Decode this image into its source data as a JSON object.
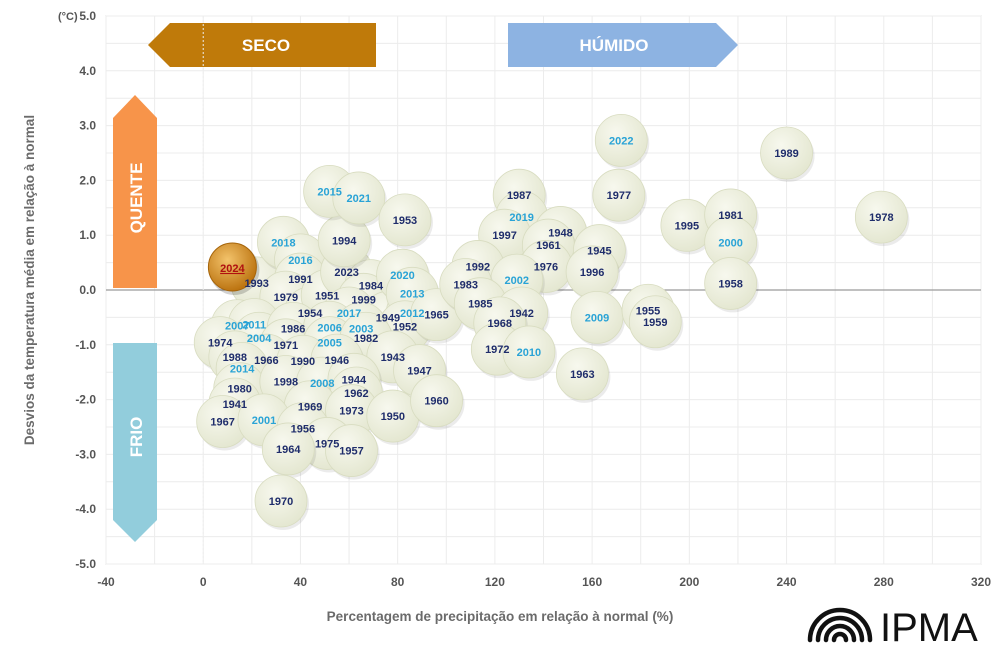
{
  "chart_data": {
    "type": "scatter",
    "title": "",
    "xlabel": "Percentagem de precipitação em relação à normal (%)",
    "ylabel": "Desvios da temperatura média em relação à normal",
    "y_unit": "(°C)",
    "xlim": [
      -40,
      320
    ],
    "ylim": [
      -5,
      5
    ],
    "x_ticks": [
      "-40",
      "0",
      "40",
      "80",
      "120",
      "160",
      "200",
      "240",
      "280",
      "320"
    ],
    "y_ticks": [
      "5.0",
      "4.0",
      "3.0",
      "2.0",
      "1.0",
      "0.0",
      "-1.0",
      "-2.0",
      "-3.0",
      "-4.0",
      "-5.0"
    ],
    "grid": true,
    "arrows": {
      "dry": "SECO",
      "wet": "HÚMIDO",
      "hot": "QUENTE",
      "cold": "FRIO"
    },
    "logo": "IPMA",
    "highlight": "2024",
    "colors": {
      "bubble": "#eef0df",
      "label_dark": "#1f2d6b",
      "label_light": "#29a3d6",
      "highlight": "#c97f12",
      "highlight_label": "#b01010",
      "dry_arrow": "#bf7a0a",
      "wet_arrow": "#8db3e2",
      "hot_arrow": "#f7944a",
      "cold_arrow": "#92cddc"
    },
    "points": [
      {
        "label": "2024",
        "x": 12,
        "y": 0.42,
        "highlight": true
      },
      {
        "label": "1993",
        "x": 22,
        "y": 0.13
      },
      {
        "label": "2018",
        "x": 33,
        "y": 0.87,
        "recent": true
      },
      {
        "label": "2016",
        "x": 40,
        "y": 0.55,
        "recent": true
      },
      {
        "label": "1991",
        "x": 40,
        "y": 0.2
      },
      {
        "label": "1979",
        "x": 34,
        "y": -0.13
      },
      {
        "label": "1954",
        "x": 44,
        "y": -0.42
      },
      {
        "label": "1951",
        "x": 51,
        "y": -0.1
      },
      {
        "label": "2023",
        "x": 59,
        "y": 0.33
      },
      {
        "label": "1984",
        "x": 69,
        "y": 0.08
      },
      {
        "label": "1999",
        "x": 66,
        "y": -0.17
      },
      {
        "label": "2017",
        "x": 60,
        "y": -0.42,
        "recent": true
      },
      {
        "label": "1949",
        "x": 76,
        "y": -0.5
      },
      {
        "label": "2012",
        "x": 86,
        "y": -0.42,
        "recent": true
      },
      {
        "label": "2020",
        "x": 82,
        "y": 0.27,
        "recent": true
      },
      {
        "label": "2013",
        "x": 86,
        "y": -0.06,
        "recent": true
      },
      {
        "label": "1952",
        "x": 83,
        "y": -0.67
      },
      {
        "label": "1965",
        "x": 96,
        "y": -0.45
      },
      {
        "label": "1994",
        "x": 58,
        "y": 0.9
      },
      {
        "label": "2015",
        "x": 52,
        "y": 1.8,
        "recent": true
      },
      {
        "label": "2021",
        "x": 64,
        "y": 1.68,
        "recent": true
      },
      {
        "label": "1953",
        "x": 83,
        "y": 1.28
      },
      {
        "label": "2007",
        "x": 14,
        "y": -0.65,
        "recent": true
      },
      {
        "label": "2011",
        "x": 21,
        "y": -0.63,
        "recent": true
      },
      {
        "label": "1974",
        "x": 7,
        "y": -0.96
      },
      {
        "label": "2004",
        "x": 23,
        "y": -0.88,
        "recent": true
      },
      {
        "label": "1986",
        "x": 37,
        "y": -0.7
      },
      {
        "label": "1971",
        "x": 34,
        "y": -1.0
      },
      {
        "label": "2006",
        "x": 52,
        "y": -0.68,
        "recent": true
      },
      {
        "label": "2003",
        "x": 65,
        "y": -0.7,
        "recent": true
      },
      {
        "label": "2005",
        "x": 52,
        "y": -0.96,
        "recent": true
      },
      {
        "label": "1982",
        "x": 67,
        "y": -0.88
      },
      {
        "label": "1988",
        "x": 13,
        "y": -1.22
      },
      {
        "label": "1966",
        "x": 26,
        "y": -1.28
      },
      {
        "label": "1990",
        "x": 41,
        "y": -1.3
      },
      {
        "label": "1946",
        "x": 55,
        "y": -1.28
      },
      {
        "label": "1943",
        "x": 78,
        "y": -1.22
      },
      {
        "label": "2014",
        "x": 16,
        "y": -1.43,
        "recent": true
      },
      {
        "label": "1980",
        "x": 15,
        "y": -1.8
      },
      {
        "label": "1998",
        "x": 34,
        "y": -1.67
      },
      {
        "label": "2008",
        "x": 49,
        "y": -1.7,
        "recent": true
      },
      {
        "label": "1944",
        "x": 62,
        "y": -1.63
      },
      {
        "label": "1947",
        "x": 89,
        "y": -1.47
      },
      {
        "label": "1962",
        "x": 63,
        "y": -1.88
      },
      {
        "label": "1941",
        "x": 13,
        "y": -2.08
      },
      {
        "label": "1969",
        "x": 44,
        "y": -2.13
      },
      {
        "label": "1973",
        "x": 61,
        "y": -2.2
      },
      {
        "label": "1950",
        "x": 78,
        "y": -2.3
      },
      {
        "label": "1960",
        "x": 96,
        "y": -2.02
      },
      {
        "label": "1967",
        "x": 8,
        "y": -2.4
      },
      {
        "label": "2001",
        "x": 25,
        "y": -2.37,
        "recent": true
      },
      {
        "label": "1956",
        "x": 41,
        "y": -2.53
      },
      {
        "label": "1975",
        "x": 51,
        "y": -2.8
      },
      {
        "label": "1964",
        "x": 35,
        "y": -2.9
      },
      {
        "label": "1957",
        "x": 61,
        "y": -2.93
      },
      {
        "label": "1970",
        "x": 32,
        "y": -3.85
      },
      {
        "label": "1987",
        "x": 130,
        "y": 1.73
      },
      {
        "label": "2019",
        "x": 131,
        "y": 1.33,
        "recent": true
      },
      {
        "label": "1997",
        "x": 124,
        "y": 1.0
      },
      {
        "label": "1948",
        "x": 147,
        "y": 1.05
      },
      {
        "label": "1961",
        "x": 142,
        "y": 0.82
      },
      {
        "label": "1945",
        "x": 163,
        "y": 0.72
      },
      {
        "label": "1992",
        "x": 113,
        "y": 0.43
      },
      {
        "label": "1976",
        "x": 141,
        "y": 0.43
      },
      {
        "label": "1996",
        "x": 160,
        "y": 0.33
      },
      {
        "label": "2002",
        "x": 129,
        "y": 0.18,
        "recent": true
      },
      {
        "label": "1983",
        "x": 108,
        "y": 0.1
      },
      {
        "label": "1985",
        "x": 114,
        "y": -0.25
      },
      {
        "label": "1942",
        "x": 131,
        "y": -0.42
      },
      {
        "label": "1968",
        "x": 122,
        "y": -0.6
      },
      {
        "label": "1972",
        "x": 121,
        "y": -1.08
      },
      {
        "label": "2010",
        "x": 134,
        "y": -1.13,
        "recent": true
      },
      {
        "label": "1963",
        "x": 156,
        "y": -1.53
      },
      {
        "label": "2009",
        "x": 162,
        "y": -0.5,
        "recent": true
      },
      {
        "label": "1955",
        "x": 183,
        "y": -0.37
      },
      {
        "label": "1959",
        "x": 186,
        "y": -0.58
      },
      {
        "label": "2022",
        "x": 172,
        "y": 2.73,
        "recent": true
      },
      {
        "label": "1977",
        "x": 171,
        "y": 1.73
      },
      {
        "label": "1995",
        "x": 199,
        "y": 1.18
      },
      {
        "label": "1981",
        "x": 217,
        "y": 1.37
      },
      {
        "label": "2000",
        "x": 217,
        "y": 0.87,
        "recent": true
      },
      {
        "label": "1958",
        "x": 217,
        "y": 0.12
      },
      {
        "label": "1989",
        "x": 240,
        "y": 2.5
      },
      {
        "label": "1978",
        "x": 279,
        "y": 1.33
      }
    ]
  }
}
